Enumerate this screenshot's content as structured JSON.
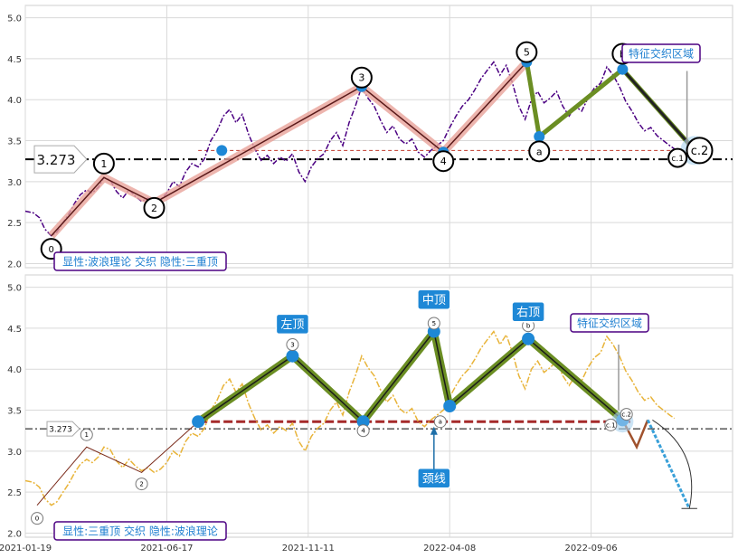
{
  "chart_data": [
    {
      "type": "line",
      "panel": "top",
      "title": "",
      "xlabel": "",
      "ylabel": "",
      "ylim": [
        1.95,
        5.15
      ],
      "yticks": [
        "2.0",
        "2.5",
        "3.0",
        "3.5",
        "4.0",
        "4.5",
        "5.0"
      ],
      "grid": true,
      "reference_level": {
        "value": 3.273,
        "label": "3.273"
      },
      "neckline_value": 3.38,
      "price_series": [
        [
          0.0,
          2.64
        ],
        [
          1.0,
          2.62
        ],
        [
          1.8,
          2.56
        ],
        [
          2.5,
          2.42
        ],
        [
          3.3,
          2.34
        ],
        [
          4.0,
          2.38
        ],
        [
          4.8,
          2.5
        ],
        [
          5.5,
          2.6
        ],
        [
          6.3,
          2.74
        ],
        [
          7.0,
          2.84
        ],
        [
          7.8,
          2.9
        ],
        [
          8.5,
          2.86
        ],
        [
          9.3,
          2.93
        ],
        [
          10.0,
          3.05
        ],
        [
          10.8,
          3.02
        ],
        [
          11.6,
          2.88
        ],
        [
          12.4,
          2.8
        ],
        [
          13.2,
          2.9
        ],
        [
          14.0,
          2.82
        ],
        [
          14.8,
          2.76
        ],
        [
          15.6,
          2.8
        ],
        [
          16.4,
          2.74
        ],
        [
          17.2,
          2.78
        ],
        [
          18.0,
          2.86
        ],
        [
          18.8,
          3.0
        ],
        [
          19.6,
          2.94
        ],
        [
          20.4,
          3.12
        ],
        [
          21.2,
          3.22
        ],
        [
          22.0,
          3.18
        ],
        [
          22.8,
          3.28
        ],
        [
          23.6,
          3.5
        ],
        [
          24.4,
          3.62
        ],
        [
          25.2,
          3.8
        ],
        [
          26.0,
          3.88
        ],
        [
          26.8,
          3.72
        ],
        [
          27.6,
          3.82
        ],
        [
          28.4,
          3.58
        ],
        [
          29.2,
          3.4
        ],
        [
          30.0,
          3.26
        ],
        [
          30.8,
          3.32
        ],
        [
          31.6,
          3.22
        ],
        [
          32.4,
          3.3
        ],
        [
          33.2,
          3.25
        ],
        [
          34.0,
          3.34
        ],
        [
          34.8,
          3.12
        ],
        [
          35.6,
          3.0
        ],
        [
          36.4,
          3.18
        ],
        [
          37.2,
          3.28
        ],
        [
          38.0,
          3.34
        ],
        [
          38.8,
          3.5
        ],
        [
          39.6,
          3.6
        ],
        [
          40.4,
          3.44
        ],
        [
          41.2,
          3.72
        ],
        [
          42.0,
          3.92
        ],
        [
          42.8,
          4.16
        ],
        [
          43.6,
          4.02
        ],
        [
          44.4,
          3.92
        ],
        [
          45.2,
          3.75
        ],
        [
          46.0,
          3.6
        ],
        [
          46.8,
          3.68
        ],
        [
          47.6,
          3.52
        ],
        [
          48.4,
          3.46
        ],
        [
          49.2,
          3.52
        ],
        [
          50.0,
          3.36
        ],
        [
          50.8,
          3.3
        ],
        [
          51.6,
          3.38
        ],
        [
          52.4,
          3.44
        ],
        [
          53.2,
          3.5
        ],
        [
          54.0,
          3.66
        ],
        [
          54.8,
          3.8
        ],
        [
          55.6,
          3.92
        ],
        [
          56.4,
          4.0
        ],
        [
          57.2,
          4.12
        ],
        [
          58.0,
          4.26
        ],
        [
          58.8,
          4.36
        ],
        [
          59.6,
          4.46
        ],
        [
          60.4,
          4.3
        ],
        [
          61.2,
          4.42
        ],
        [
          62.0,
          4.2
        ],
        [
          62.8,
          3.92
        ],
        [
          63.6,
          3.76
        ],
        [
          64.4,
          4.0
        ],
        [
          65.2,
          4.1
        ],
        [
          66.0,
          3.96
        ],
        [
          66.8,
          4.02
        ],
        [
          67.6,
          4.1
        ],
        [
          68.4,
          3.92
        ],
        [
          69.2,
          3.8
        ],
        [
          70.0,
          3.92
        ],
        [
          70.8,
          3.86
        ],
        [
          71.6,
          4.02
        ],
        [
          72.4,
          4.14
        ],
        [
          73.2,
          4.2
        ],
        [
          74.0,
          4.4
        ],
        [
          74.8,
          4.3
        ],
        [
          75.6,
          4.16
        ],
        [
          76.4,
          3.98
        ],
        [
          77.2,
          3.86
        ],
        [
          78.0,
          3.72
        ],
        [
          78.8,
          3.62
        ],
        [
          79.6,
          3.66
        ],
        [
          80.4,
          3.56
        ],
        [
          81.2,
          3.5
        ],
        [
          82.0,
          3.44
        ],
        [
          82.6,
          3.4
        ]
      ],
      "wave_labels": [
        "0",
        "1",
        "2",
        "3",
        "4",
        "5",
        "a",
        "b",
        "c.1",
        "c.2"
      ],
      "wave_points": [
        {
          "label": "0",
          "x": 3.3,
          "y": 2.34
        },
        {
          "label": "1",
          "x": 10.0,
          "y": 3.05
        },
        {
          "label": "2",
          "x": 16.4,
          "y": 2.74
        },
        {
          "label": "3",
          "x": 42.8,
          "y": 4.16
        },
        {
          "label": "4",
          "x": 53.2,
          "y": 3.36
        },
        {
          "label": "5",
          "x": 63.8,
          "y": 4.46
        }
      ],
      "corrective_points": [
        {
          "label": "a",
          "x": 65.4,
          "y": 3.55
        },
        {
          "label": "b",
          "x": 76.0,
          "y": 4.37
        },
        {
          "label": "c.2",
          "x": 85.2,
          "y": 3.38
        }
      ],
      "zone_label": "特征交织区域",
      "caption": "显性:波浪理论 交织 隐性:三重顶",
      "colors": {
        "price": "#4b0082",
        "wave": "#e8a39a",
        "corrective": "#6b8e23",
        "reference": "#000000",
        "neck": "#c0392b",
        "marker": "#1e88d6"
      }
    },
    {
      "type": "line",
      "panel": "bottom",
      "title": "",
      "xlabel": "",
      "ylabel": "",
      "ylim": [
        1.95,
        5.15
      ],
      "yticks": [
        "2.0",
        "2.5",
        "3.0",
        "3.5",
        "4.0",
        "4.5",
        "5.0"
      ],
      "xticks": [
        "2021-01-19",
        "2021-06-17",
        "2021-11-11",
        "2022-04-08",
        "2022-09-06"
      ],
      "grid": true,
      "reference_level": {
        "value": 3.273,
        "label": "3.273"
      },
      "neckline_value": 3.36,
      "pattern_labels": [
        "左顶",
        "中顶",
        "右顶",
        "颈线"
      ],
      "pattern_points": [
        {
          "x": 22.0,
          "y": 3.36
        },
        {
          "x": 34.0,
          "y": 4.16
        },
        {
          "x": 43.0,
          "y": 3.36
        },
        {
          "x": 52.0,
          "y": 4.46
        },
        {
          "x": 54.0,
          "y": 3.55
        },
        {
          "x": 64.0,
          "y": 4.37
        },
        {
          "x": 76.0,
          "y": 3.38
        }
      ],
      "projection_target": 2.3,
      "wave_labels": [
        "0",
        "1",
        "2",
        "3",
        "4",
        "5",
        "a",
        "b",
        "c.1",
        "c.2"
      ],
      "zone_label": "特征交织区域",
      "caption": "显性:三重顶 交织 隐性:波浪理论",
      "colors": {
        "price": "#e8b43a",
        "pattern": "#6b8e23",
        "reference": "#000000",
        "neck": "#a52a2a",
        "marker": "#1e88d6",
        "projection": "#3aa0d8"
      }
    }
  ]
}
